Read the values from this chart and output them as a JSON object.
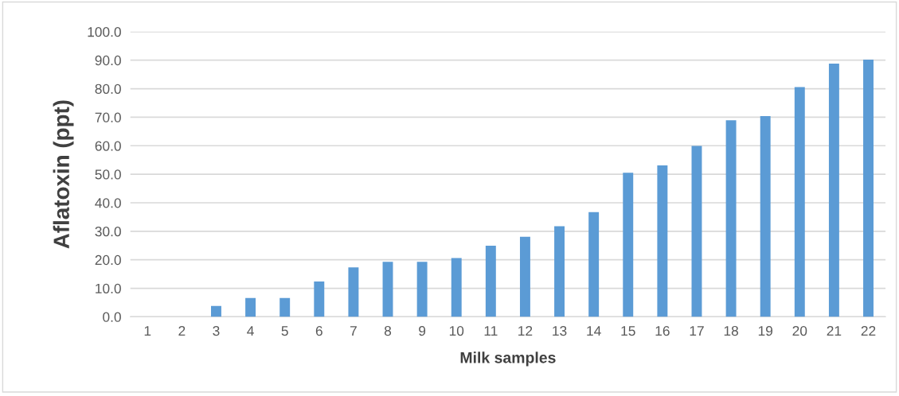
{
  "chart_data": {
    "type": "bar",
    "xlabel": "Milk samples",
    "ylabel": "Aflatoxin (ppt)",
    "categories": [
      "1",
      "2",
      "3",
      "4",
      "5",
      "6",
      "7",
      "8",
      "9",
      "10",
      "11",
      "12",
      "13",
      "14",
      "15",
      "16",
      "17",
      "18",
      "19",
      "20",
      "21",
      "22"
    ],
    "values": [
      0,
      0,
      3.8,
      6.6,
      6.6,
      12.4,
      17.3,
      19.3,
      19.3,
      20.6,
      24.9,
      28.1,
      31.8,
      36.7,
      50.5,
      53.1,
      59.9,
      68.9,
      70.4,
      80.6,
      88.8,
      90.2
    ],
    "color": "#5b9bd5",
    "ylim": [
      0,
      100
    ],
    "yticks": [
      {
        "value": 0,
        "label": "0.0"
      },
      {
        "value": 10,
        "label": "10.0"
      },
      {
        "value": 20,
        "label": "20.0"
      },
      {
        "value": 30,
        "label": "30.0"
      },
      {
        "value": 40,
        "label": "40.0"
      },
      {
        "value": 50,
        "label": "50.0"
      },
      {
        "value": 60,
        "label": "60.0"
      },
      {
        "value": 70,
        "label": "70.0"
      },
      {
        "value": 80,
        "label": "80.0"
      },
      {
        "value": 90,
        "label": "90.0"
      },
      {
        "value": 100,
        "label": "100.0"
      }
    ],
    "grid": "y",
    "legend": false
  }
}
